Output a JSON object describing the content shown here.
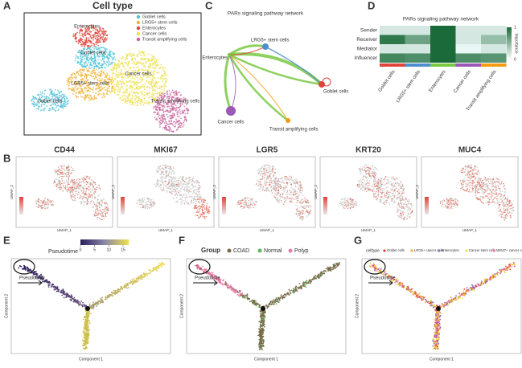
{
  "panels": {
    "A": {
      "label": "A",
      "title": "Cell type",
      "legend": [
        "Goblet cells",
        "LRG5+ stem cells",
        "Enterocytes",
        "Cancer cells",
        "Transit amplifying cells"
      ],
      "legend_colors": [
        "#4fc3d9",
        "#f2b233",
        "#e0443a",
        "#ece04a",
        "#c9609a"
      ],
      "cluster_labels": [
        "Enterocytes",
        "Goblet cells",
        "LGR5+ stem cells",
        "Cancer cells",
        "Goblet cells",
        "Transit amplifying cells"
      ]
    },
    "C": {
      "label": "C",
      "title": "PARs signaling pathway network",
      "nodes": [
        "LRG5+ stem cells",
        "Enterocytes",
        "Goblet cells",
        "Cancer cells",
        "Transit amplifying cells"
      ],
      "node_colors": [
        "#4f8fcf",
        "#7ac943",
        "#e0443a",
        "#9b59b6",
        "#f39c12"
      ]
    },
    "D": {
      "label": "D",
      "title": "PARs signaling pathway network",
      "rows": [
        "Sender",
        "Receiver",
        "Mediator",
        "Influencer"
      ],
      "columns": [
        "Goblet cells",
        "LRG5+ stem cells",
        "Enterocytes",
        "Cancer cells",
        "Transit amplifying cells"
      ],
      "column_colors": [
        "#e0443a",
        "#4f8fcf",
        "#7ac943",
        "#9b59b6",
        "#f39c12"
      ],
      "values": [
        [
          0.1,
          0.1,
          1,
          0.1,
          0.1
        ],
        [
          0.9,
          0.6,
          1,
          0.1,
          0.4
        ],
        [
          0.1,
          0.1,
          1,
          0.0,
          0.1
        ],
        [
          0.8,
          0.75,
          1,
          0.75,
          0.7
        ]
      ],
      "legend_title": "Importance",
      "legend_lim": [
        0,
        1
      ],
      "legend_ticks": [
        0,
        1
      ]
    },
    "B": {
      "label": "B",
      "genes": [
        "CD44",
        "MKI67",
        "LGR5",
        "KRT20",
        "MUC4"
      ],
      "xlabel": "UMAP_1",
      "ylabel": "UMAP_2"
    },
    "E": {
      "label": "E",
      "legend_title": "Pseudotime",
      "legend_lim": [
        0,
        17
      ],
      "legend_ticks": [
        0,
        5,
        10,
        15
      ],
      "annotation": "Pseudotime",
      "xlabel": "Component 1",
      "ylabel": "Component 2"
    },
    "F": {
      "label": "F",
      "legend_title": "Group",
      "groups": [
        "COAD",
        "Normal",
        "Polyp"
      ],
      "group_colors": [
        "#7a6a4a",
        "#5cb85c",
        "#e87aa8"
      ],
      "annotation": "Pseudotime",
      "xlabel": "Component 1",
      "ylabel": "Component 2"
    },
    "G": {
      "label": "G",
      "legend_title": "celltype",
      "groups": [
        "Goblet cells",
        "LRG5+ cancer cells",
        "enterocytes",
        "Cancer stem cells",
        "MKI67+ cancer cells"
      ],
      "group_colors": [
        "#e0443a",
        "#f2b233",
        "#8e6bbf",
        "#ece04a",
        "#e87aa8"
      ],
      "annotation": "Pseudotime",
      "xlabel": "Component 1",
      "ylabel": "Component 2"
    }
  }
}
